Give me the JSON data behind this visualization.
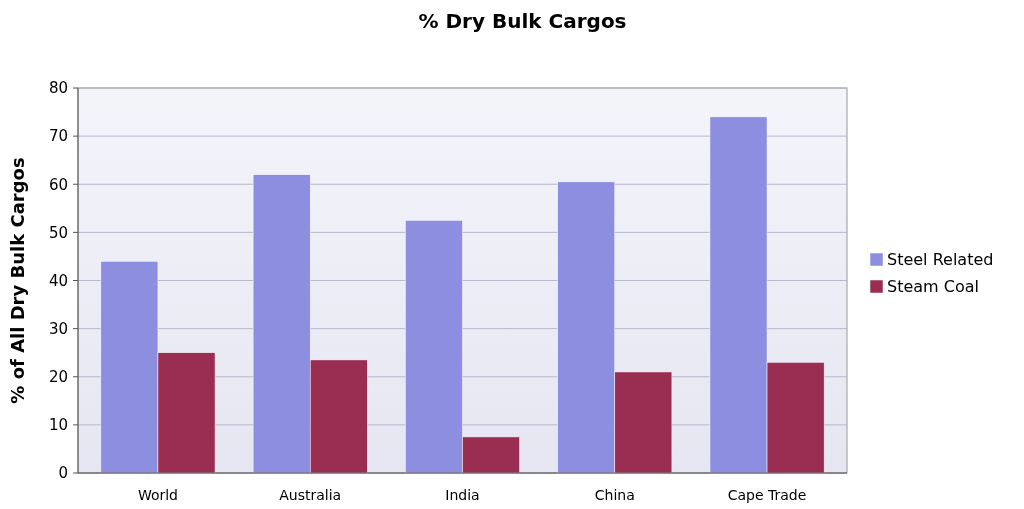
{
  "chart_data": {
    "type": "bar",
    "title": "% Dry Bulk Cargos",
    "ylabel": "% of All Dry Bulk Cargos",
    "categories": [
      "World",
      "Australia",
      "India",
      "China",
      "Cape Trade"
    ],
    "series": [
      {
        "name": "Steel Related",
        "color": "#8c8fe0",
        "values": [
          44,
          62,
          52.5,
          60.5,
          74
        ]
      },
      {
        "name": "Steam Coal",
        "color": "#9a2e52",
        "values": [
          25,
          23.5,
          7.5,
          21,
          23
        ]
      }
    ],
    "ylim": [
      0,
      80
    ],
    "yticks": [
      0,
      10,
      20,
      30,
      40,
      50,
      60,
      70,
      80
    ],
    "grid": "y",
    "legend": "right"
  }
}
